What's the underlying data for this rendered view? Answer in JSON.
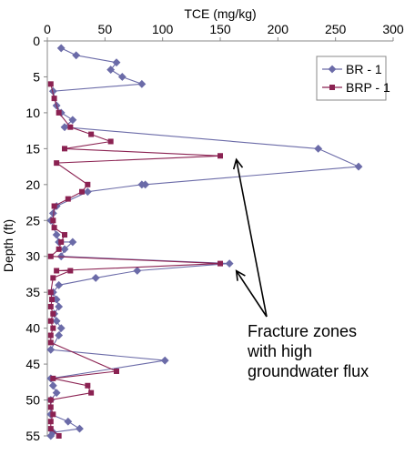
{
  "chart_data": {
    "type": "line",
    "x_label": "TCE (mg/kg)",
    "y_label": "Depth (ft)",
    "xlim": [
      0,
      300
    ],
    "ylim": [
      0,
      55
    ],
    "y_reversed": true,
    "x_ticks": [
      "0",
      "50",
      "100",
      "150",
      "200",
      "250",
      "300"
    ],
    "y_ticks": [
      "0",
      "5",
      "10",
      "15",
      "20",
      "25",
      "30",
      "35",
      "40",
      "45",
      "50",
      "55"
    ],
    "grid": false,
    "legend_position": "top-right",
    "series": [
      {
        "name": "BR - 1",
        "color": "#6b6ba8",
        "marker": "diamond",
        "points": [
          [
            12,
            1
          ],
          [
            25,
            2
          ],
          [
            60,
            3
          ],
          [
            55,
            4
          ],
          [
            65,
            5
          ],
          [
            82,
            6
          ],
          [
            5,
            7
          ],
          [
            8,
            9
          ],
          [
            12,
            10
          ],
          [
            22,
            11
          ],
          [
            15,
            12
          ],
          [
            235,
            15
          ],
          [
            270,
            17.5
          ],
          [
            85,
            20
          ],
          [
            82,
            20
          ],
          [
            35,
            21
          ],
          [
            8,
            23
          ],
          [
            5,
            24
          ],
          [
            3,
            25
          ],
          [
            8,
            27
          ],
          [
            10,
            28
          ],
          [
            22,
            28
          ],
          [
            15,
            29
          ],
          [
            12,
            30
          ],
          [
            158,
            31
          ],
          [
            78,
            32
          ],
          [
            42,
            33
          ],
          [
            10,
            34
          ],
          [
            5,
            35
          ],
          [
            8,
            36
          ],
          [
            10,
            37
          ],
          [
            6,
            38
          ],
          [
            8,
            39
          ],
          [
            12,
            40
          ],
          [
            10,
            41
          ],
          [
            3,
            43
          ],
          [
            102,
            44.5
          ],
          [
            3,
            47
          ],
          [
            5,
            48
          ],
          [
            8,
            49
          ],
          [
            3,
            50
          ],
          [
            3,
            52
          ],
          [
            18,
            53
          ],
          [
            28,
            54
          ],
          [
            5,
            54.5
          ],
          [
            3,
            55
          ]
        ]
      },
      {
        "name": "BRP - 1",
        "color": "#8b2252",
        "marker": "square",
        "points": [
          [
            3,
            6
          ],
          [
            6,
            8
          ],
          [
            10,
            10
          ],
          [
            20,
            12
          ],
          [
            38,
            13
          ],
          [
            55,
            14
          ],
          [
            15,
            15
          ],
          [
            150,
            16
          ],
          [
            8,
            17
          ],
          [
            35,
            20
          ],
          [
            30,
            21
          ],
          [
            18,
            22
          ],
          [
            6,
            23
          ],
          [
            5,
            25
          ],
          [
            6,
            26
          ],
          [
            15,
            27
          ],
          [
            12,
            28
          ],
          [
            10,
            29
          ],
          [
            3,
            30
          ],
          [
            150,
            31
          ],
          [
            8,
            32
          ],
          [
            20,
            32
          ],
          [
            5,
            33
          ],
          [
            3,
            35
          ],
          [
            4,
            36
          ],
          [
            3,
            37
          ],
          [
            5,
            38
          ],
          [
            3,
            39
          ],
          [
            5,
            40
          ],
          [
            3,
            41
          ],
          [
            3,
            42
          ],
          [
            60,
            46
          ],
          [
            5,
            47
          ],
          [
            35,
            48
          ],
          [
            38,
            49
          ],
          [
            3,
            50
          ],
          [
            3,
            51
          ],
          [
            5,
            52
          ],
          [
            3,
            53
          ],
          [
            3,
            54
          ],
          [
            10,
            55
          ]
        ]
      }
    ],
    "annotation": {
      "lines": [
        "Fracture zones",
        "with high",
        "groundwater flux"
      ],
      "arrow_targets": [
        [
          160,
          16
        ],
        [
          160,
          31.5
        ]
      ]
    }
  }
}
